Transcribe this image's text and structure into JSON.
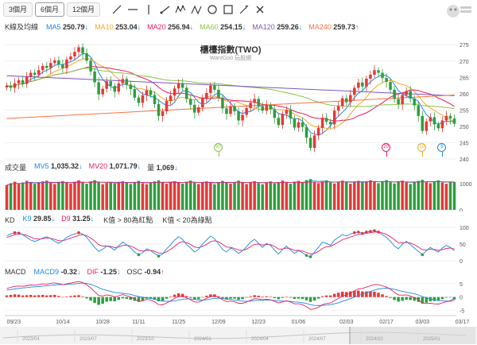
{
  "toolbar": {
    "ranges": [
      "3個月",
      "6個月",
      "12個月"
    ],
    "active_range": 1
  },
  "logo_icon": "wantgoo-mascot-icon",
  "main": {
    "title": "櫃檯指數(TWO)",
    "subtitle": "WantGoo 玩股網",
    "legend_label": "K線及均線",
    "ma": [
      {
        "label": "MA5",
        "value": "250.79",
        "arrow": "↓",
        "color": "#1e88e5"
      },
      {
        "label": "MA10",
        "value": "253.04",
        "arrow": "↓",
        "color": "#f9a825"
      },
      {
        "label": "MA20",
        "value": "256.94",
        "arrow": "↓",
        "color": "#e91e63"
      },
      {
        "label": "MA60",
        "value": "254.15",
        "arrow": "↓",
        "color": "#8bc34a"
      },
      {
        "label": "MA120",
        "value": "259.26",
        "arrow": "↓",
        "color": "#7e57c2"
      },
      {
        "label": "MA240",
        "value": "259.73",
        "arrow": "↑",
        "color": "#ff7043"
      }
    ],
    "markers": [
      {
        "text": "60",
        "color": "#8bc34a"
      },
      {
        "text": "20",
        "color": "#e91e63"
      },
      {
        "text": "10",
        "color": "#f9a825"
      },
      {
        "text": "5",
        "color": "#1e88e5"
      }
    ]
  },
  "volume": {
    "label": "成交量",
    "items": [
      {
        "label": "MV5",
        "value": "1,035.32",
        "arrow": "↓",
        "color": "#1e88e5"
      },
      {
        "label": "MV20",
        "value": "1,071.79",
        "arrow": "↓",
        "color": "#e91e63"
      },
      {
        "label": "量",
        "value": "1,069",
        "arrow": "↓",
        "color": "#333333"
      }
    ]
  },
  "kd": {
    "label": "KD",
    "items": [
      {
        "label": "K9",
        "value": "29.85",
        "arrow": "↓",
        "color": "#1e88e5"
      },
      {
        "label": "D9",
        "value": "31.25",
        "arrow": "↓",
        "color": "#e91e63"
      }
    ],
    "notes": [
      "K值 > 80為紅點",
      "K值 < 20為綠點"
    ]
  },
  "macd": {
    "label": "MACD",
    "items": [
      {
        "label": "MACD9",
        "value": "-0.32",
        "arrow": "↓",
        "color": "#1e88e5"
      },
      {
        "label": "DIF",
        "value": "-1.25",
        "arrow": "↓",
        "color": "#e91e63"
      },
      {
        "label": "OSC",
        "value": "-0.94",
        "arrow": "↑",
        "color": "#333333"
      }
    ]
  },
  "chart_data": {
    "type": "candlestick",
    "y_ticks": [
      240,
      245,
      250,
      255,
      260,
      265,
      270,
      275
    ],
    "ylim": [
      240,
      277
    ],
    "vol_ticks": [
      0,
      1000
    ],
    "vol_ylim": [
      0,
      1400
    ],
    "kd_ticks": [
      0,
      50,
      100
    ],
    "kd_ylim": [
      0,
      100
    ],
    "macd_ticks": [
      -5,
      0,
      5
    ],
    "macd_ylim": [
      -6,
      7
    ],
    "x_date_labels": [
      "09/23",
      "10/14",
      "10/28",
      "11/11",
      "11/25",
      "12/09",
      "12/23",
      "01/06",
      "02/03",
      "02/17",
      "03/03",
      "03/17"
    ],
    "x_date_index": [
      0,
      14,
      24,
      33,
      43,
      53,
      63,
      73,
      85,
      95,
      104,
      114
    ],
    "overview_labels": [
      "2023/04",
      "2023/07",
      "2023/10",
      "2024/01",
      "2024/04",
      "2024/07",
      "2024/10",
      "2025/01"
    ],
    "close": [
      262.5,
      261.8,
      263.2,
      264.1,
      263.0,
      265.2,
      266.4,
      265.8,
      267.2,
      268.5,
      267.9,
      269.4,
      270.2,
      269.0,
      267.8,
      270.5,
      271.4,
      272.8,
      274.2,
      272.4,
      270.1,
      266.8,
      263.5,
      259.8,
      261.5,
      263.8,
      262.4,
      260.6,
      263.2,
      264.5,
      262.8,
      261.4,
      258.8,
      257.2,
      259.5,
      261.0,
      259.6,
      256.8,
      253.2,
      254.6,
      257.8,
      259.4,
      261.6,
      263.2,
      261.8,
      258.4,
      256.6,
      254.2,
      255.8,
      258.6,
      260.2,
      262.5,
      261.2,
      258.8,
      255.5,
      253.8,
      256.2,
      254.6,
      251.8,
      253.5,
      255.6,
      257.2,
      258.4,
      256.2,
      254.8,
      256.5,
      255.2,
      252.6,
      250.4,
      253.8,
      255.0,
      252.4,
      249.6,
      251.2,
      249.8,
      246.5,
      243.4,
      247.2,
      249.5,
      252.6,
      251.4,
      250.6,
      254.8,
      256.2,
      258.6,
      257.4,
      259.6,
      261.8,
      263.4,
      262.2,
      264.6,
      265.8,
      267.2,
      266.4,
      264.8,
      263.6,
      261.2,
      258.4,
      256.8,
      259.6,
      260.8,
      258.5,
      256.4,
      253.2,
      248.6,
      251.5,
      252.8,
      250.6,
      249.4,
      251.8,
      253.2,
      252.4,
      250.8
    ],
    "volume": [
      950,
      1020,
      1080,
      990,
      1050,
      1110,
      1060,
      1000,
      1040,
      1090,
      1120,
      1030,
      990,
      1070,
      1100,
      1060,
      1010,
      1080,
      1130,
      1050,
      1000,
      1090,
      1140,
      1060,
      980,
      1030,
      1070,
      1010,
      1050,
      1090,
      1040,
      990,
      1060,
      1110,
      1020,
      980,
      1040,
      1090,
      1130,
      1050,
      1000,
      1070,
      1100,
      1060,
      1010,
      1080,
      1120,
      1040,
      990,
      1050,
      1090,
      1030,
      980,
      1060,
      1110,
      1040,
      1000,
      1070,
      1120,
      1050,
      990,
      1060,
      1100,
      1030,
      980,
      1050,
      1090,
      1010,
      1060,
      1120,
      1040,
      1000,
      1080,
      1110,
      1050,
      1140,
      1180,
      1070,
      1020,
      1090,
      1130,
      1050,
      1010,
      1080,
      1120,
      1060,
      1000,
      1070,
      1110,
      1050,
      1090,
      1130,
      1070,
      1020,
      1100,
      1140,
      1060,
      1010,
      1080,
      1120,
      1050,
      990,
      1070,
      1110,
      1150,
      1060,
      1020,
      1090,
      1130,
      1050,
      1000,
      1080,
      1069
    ],
    "k": [
      75,
      80,
      84,
      83,
      78,
      70,
      62,
      58,
      62,
      68,
      72,
      66,
      58,
      52,
      60,
      70,
      76,
      80,
      84,
      80,
      70,
      55,
      40,
      28,
      34,
      44,
      40,
      32,
      45,
      56,
      48,
      38,
      26,
      18,
      24,
      36,
      30,
      22,
      14,
      20,
      36,
      48,
      62,
      72,
      64,
      48,
      38,
      26,
      34,
      50,
      62,
      74,
      66,
      50,
      34,
      26,
      38,
      32,
      22,
      30,
      42,
      56,
      64,
      52,
      40,
      52,
      46,
      32,
      20,
      34,
      44,
      32,
      22,
      30,
      24,
      16,
      12,
      26,
      40,
      56,
      52,
      46,
      62,
      70,
      78,
      74,
      80,
      84,
      86,
      82,
      86,
      88,
      90,
      86,
      78,
      70,
      58,
      44,
      36,
      50,
      58,
      48,
      38,
      28,
      18,
      30,
      40,
      32,
      26,
      38,
      46,
      40,
      30
    ],
    "d": [
      70,
      74,
      78,
      80,
      79,
      76,
      71,
      66,
      65,
      66,
      68,
      67,
      64,
      60,
      60,
      63,
      68,
      72,
      76,
      78,
      75,
      68,
      59,
      48,
      44,
      44,
      43,
      39,
      41,
      46,
      47,
      44,
      38,
      31,
      29,
      31,
      31,
      28,
      23,
      22,
      27,
      34,
      43,
      53,
      57,
      54,
      49,
      41,
      39,
      43,
      49,
      57,
      60,
      57,
      49,
      41,
      40,
      37,
      32,
      31,
      35,
      42,
      49,
      50,
      47,
      49,
      48,
      43,
      35,
      35,
      38,
      36,
      31,
      31,
      29,
      25,
      20,
      22,
      28,
      37,
      42,
      43,
      49,
      56,
      63,
      67,
      71,
      75,
      79,
      80,
      82,
      84,
      86,
      86,
      83,
      79,
      72,
      63,
      54,
      53,
      55,
      53,
      48,
      41,
      33,
      32,
      35,
      34,
      31,
      33,
      37,
      38,
      35
    ],
    "dif": [
      3.2,
      3.6,
      4.0,
      4.1,
      4.0,
      4.2,
      4.5,
      4.4,
      4.6,
      4.9,
      4.8,
      5.1,
      5.3,
      5.0,
      4.6,
      4.9,
      5.2,
      5.5,
      5.8,
      5.4,
      4.6,
      3.4,
      2.0,
      0.6,
      0.4,
      0.8,
      0.6,
      0.1,
      0.5,
      0.9,
      0.5,
      0.0,
      -0.8,
      -1.6,
      -1.4,
      -0.9,
      -1.1,
      -1.8,
      -2.8,
      -2.9,
      -2.2,
      -1.4,
      -0.5,
      0.3,
      0.4,
      -0.3,
      -1.0,
      -1.8,
      -1.9,
      -1.2,
      -0.5,
      0.3,
      0.5,
      -0.1,
      -1.0,
      -1.7,
      -1.5,
      -1.7,
      -2.3,
      -2.3,
      -1.8,
      -1.2,
      -0.6,
      -0.7,
      -1.0,
      -0.8,
      -1.0,
      -1.6,
      -2.2,
      -1.8,
      -1.4,
      -1.8,
      -2.5,
      -2.5,
      -2.8,
      -3.6,
      -4.6,
      -4.4,
      -3.8,
      -2.8,
      -2.4,
      -2.2,
      -1.3,
      -0.5,
      0.4,
      0.8,
      1.5,
      2.3,
      3.0,
      3.2,
      3.7,
      4.2,
      4.6,
      4.6,
      4.2,
      3.7,
      2.9,
      1.8,
      0.8,
      0.7,
      0.8,
      0.4,
      -0.2,
      -1.0,
      -2.2,
      -2.4,
      -2.3,
      -2.5,
      -2.6,
      -2.2,
      -1.7,
      -1.5,
      -1.25
    ],
    "macd9": [
      2.6,
      2.8,
      3.0,
      3.2,
      3.4,
      3.5,
      3.7,
      3.8,
      3.9,
      4.1,
      4.2,
      4.4,
      4.5,
      4.6,
      4.6,
      4.7,
      4.8,
      4.9,
      5.1,
      5.2,
      5.1,
      4.7,
      4.2,
      3.5,
      2.9,
      2.5,
      2.1,
      1.7,
      1.5,
      1.4,
      1.2,
      1.0,
      0.6,
      0.2,
      -0.1,
      -0.3,
      -0.5,
      -0.8,
      -1.2,
      -1.5,
      -1.6,
      -1.6,
      -1.4,
      -1.1,
      -0.8,
      -0.7,
      -0.7,
      -0.9,
      -1.1,
      -1.1,
      -1.0,
      -0.7,
      -0.5,
      -0.4,
      -0.5,
      -0.8,
      -0.9,
      -1.1,
      -1.3,
      -1.5,
      -1.6,
      -1.5,
      -1.3,
      -1.2,
      -1.2,
      -1.1,
      -1.1,
      -1.2,
      -1.4,
      -1.5,
      -1.5,
      -1.6,
      -1.8,
      -1.9,
      -2.1,
      -2.4,
      -2.8,
      -3.1,
      -3.2,
      -3.1,
      -3.0,
      -2.8,
      -2.5,
      -2.1,
      -1.6,
      -1.1,
      -0.6,
      0.0,
      0.6,
      1.1,
      1.6,
      2.1,
      2.6,
      3.0,
      3.2,
      3.3,
      3.2,
      2.9,
      2.5,
      2.1,
      1.8,
      1.5,
      1.2,
      0.8,
      0.2,
      -0.3,
      -0.7,
      -1.0,
      -1.3,
      -1.4,
      -1.5,
      -1.4,
      -0.32
    ]
  }
}
